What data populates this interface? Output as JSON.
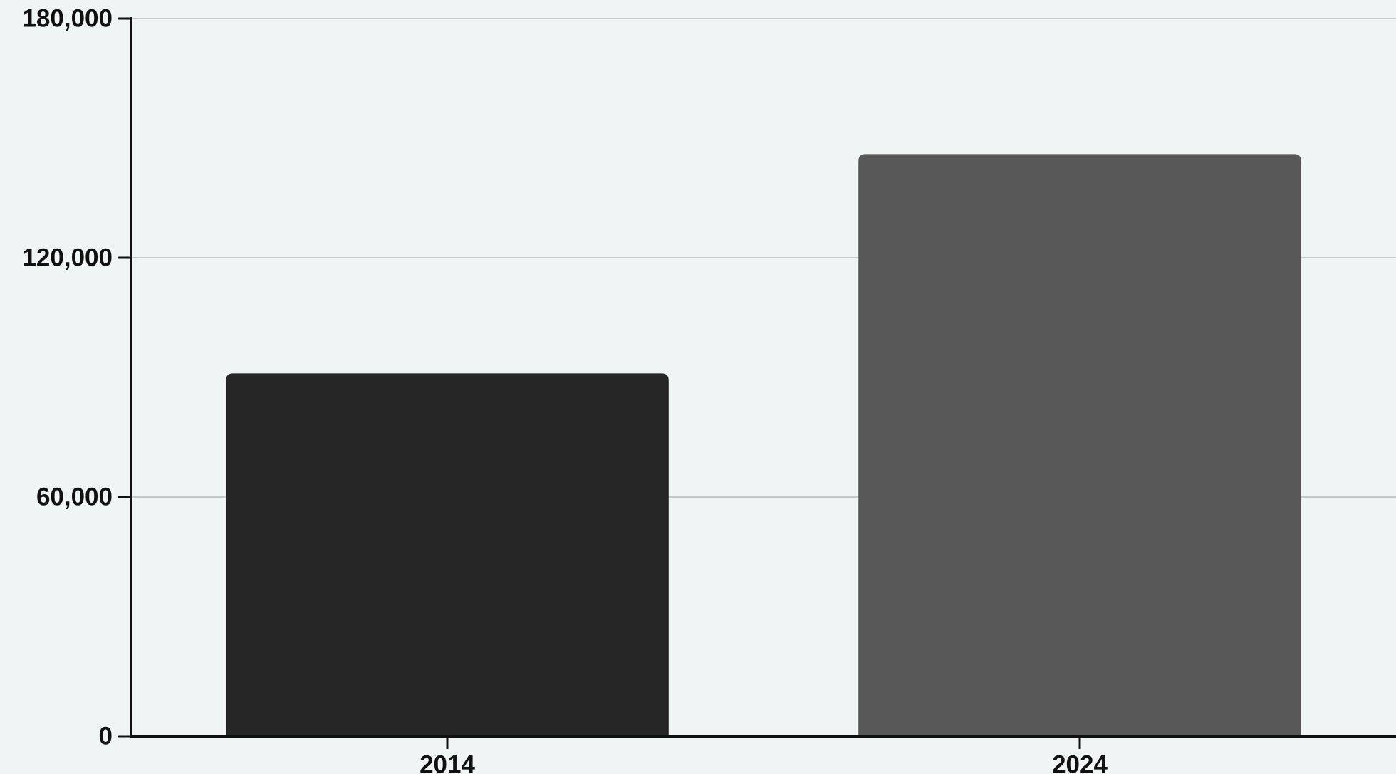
{
  "chart_data": {
    "type": "bar",
    "title": "",
    "xlabel": "",
    "ylabel": "",
    "categories": [
      "2014",
      "2024"
    ],
    "values": [
      91000,
      146000
    ],
    "bar_colors": [
      "#262626",
      "#575757"
    ],
    "ylim": [
      0,
      180000
    ],
    "yticks": [
      0,
      60000,
      120000,
      180000
    ],
    "ytick_labels": [
      "0",
      "60,000",
      "120,000",
      "180,000"
    ],
    "grid": true,
    "legend": "none"
  },
  "colors": {
    "background": "#eff5f4",
    "gridline": "#c4cbca",
    "axis": "#111111"
  }
}
